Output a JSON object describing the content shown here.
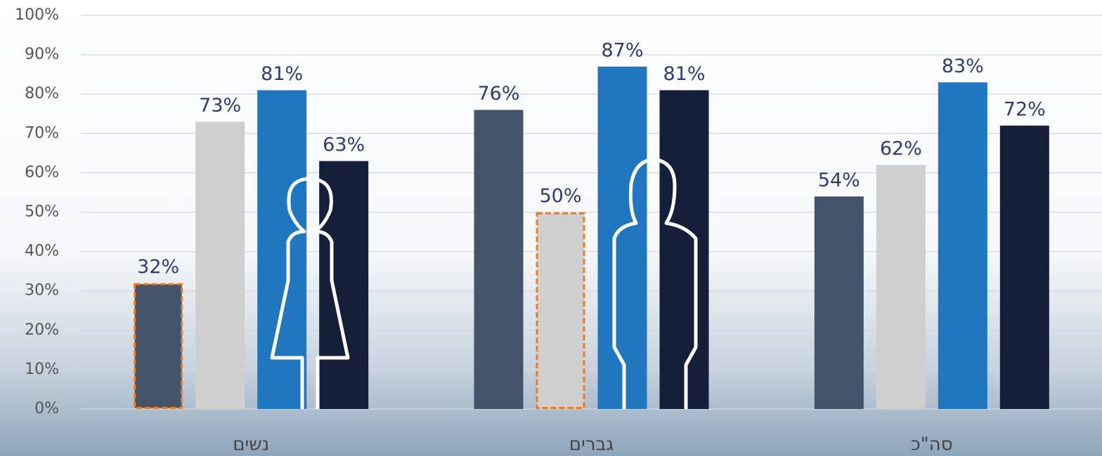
{
  "chart_data": {
    "type": "bar",
    "categories": [
      "נשים",
      "גברים",
      "סה\"כ"
    ],
    "series": [
      {
        "color": "#44546a",
        "values": [
          32,
          76,
          54
        ],
        "value_labels": [
          "32%",
          "76%",
          "54%"
        ]
      },
      {
        "color": "#d0cfcf",
        "values": [
          73,
          50,
          62
        ],
        "value_labels": [
          "73%",
          "50%",
          "62%"
        ]
      },
      {
        "color": "#2077c0",
        "values": [
          81,
          87,
          83
        ],
        "value_labels": [
          "81%",
          "87%",
          "83%"
        ]
      },
      {
        "color": "#161f3a",
        "values": [
          63,
          81,
          72
        ],
        "value_labels": [
          "63%",
          "81%",
          "72%"
        ]
      }
    ],
    "outlined": [
      [
        0,
        0
      ],
      [
        1,
        1
      ]
    ],
    "outline_color": "#f07c1c",
    "ylim": [
      0,
      100
    ],
    "yticks": [
      {
        "value": 0,
        "label": "0%"
      },
      {
        "value": 10,
        "label": "10%"
      },
      {
        "value": 20,
        "label": "20%"
      },
      {
        "value": 30,
        "label": "30%"
      },
      {
        "value": 40,
        "label": "40%"
      },
      {
        "value": 50,
        "label": "50%"
      },
      {
        "value": 60,
        "label": "60%"
      },
      {
        "value": 70,
        "label": "70%"
      },
      {
        "value": 80,
        "label": "80%"
      },
      {
        "value": 90,
        "label": "90%"
      },
      {
        "value": 100,
        "label": "100%"
      }
    ],
    "grid": true
  }
}
